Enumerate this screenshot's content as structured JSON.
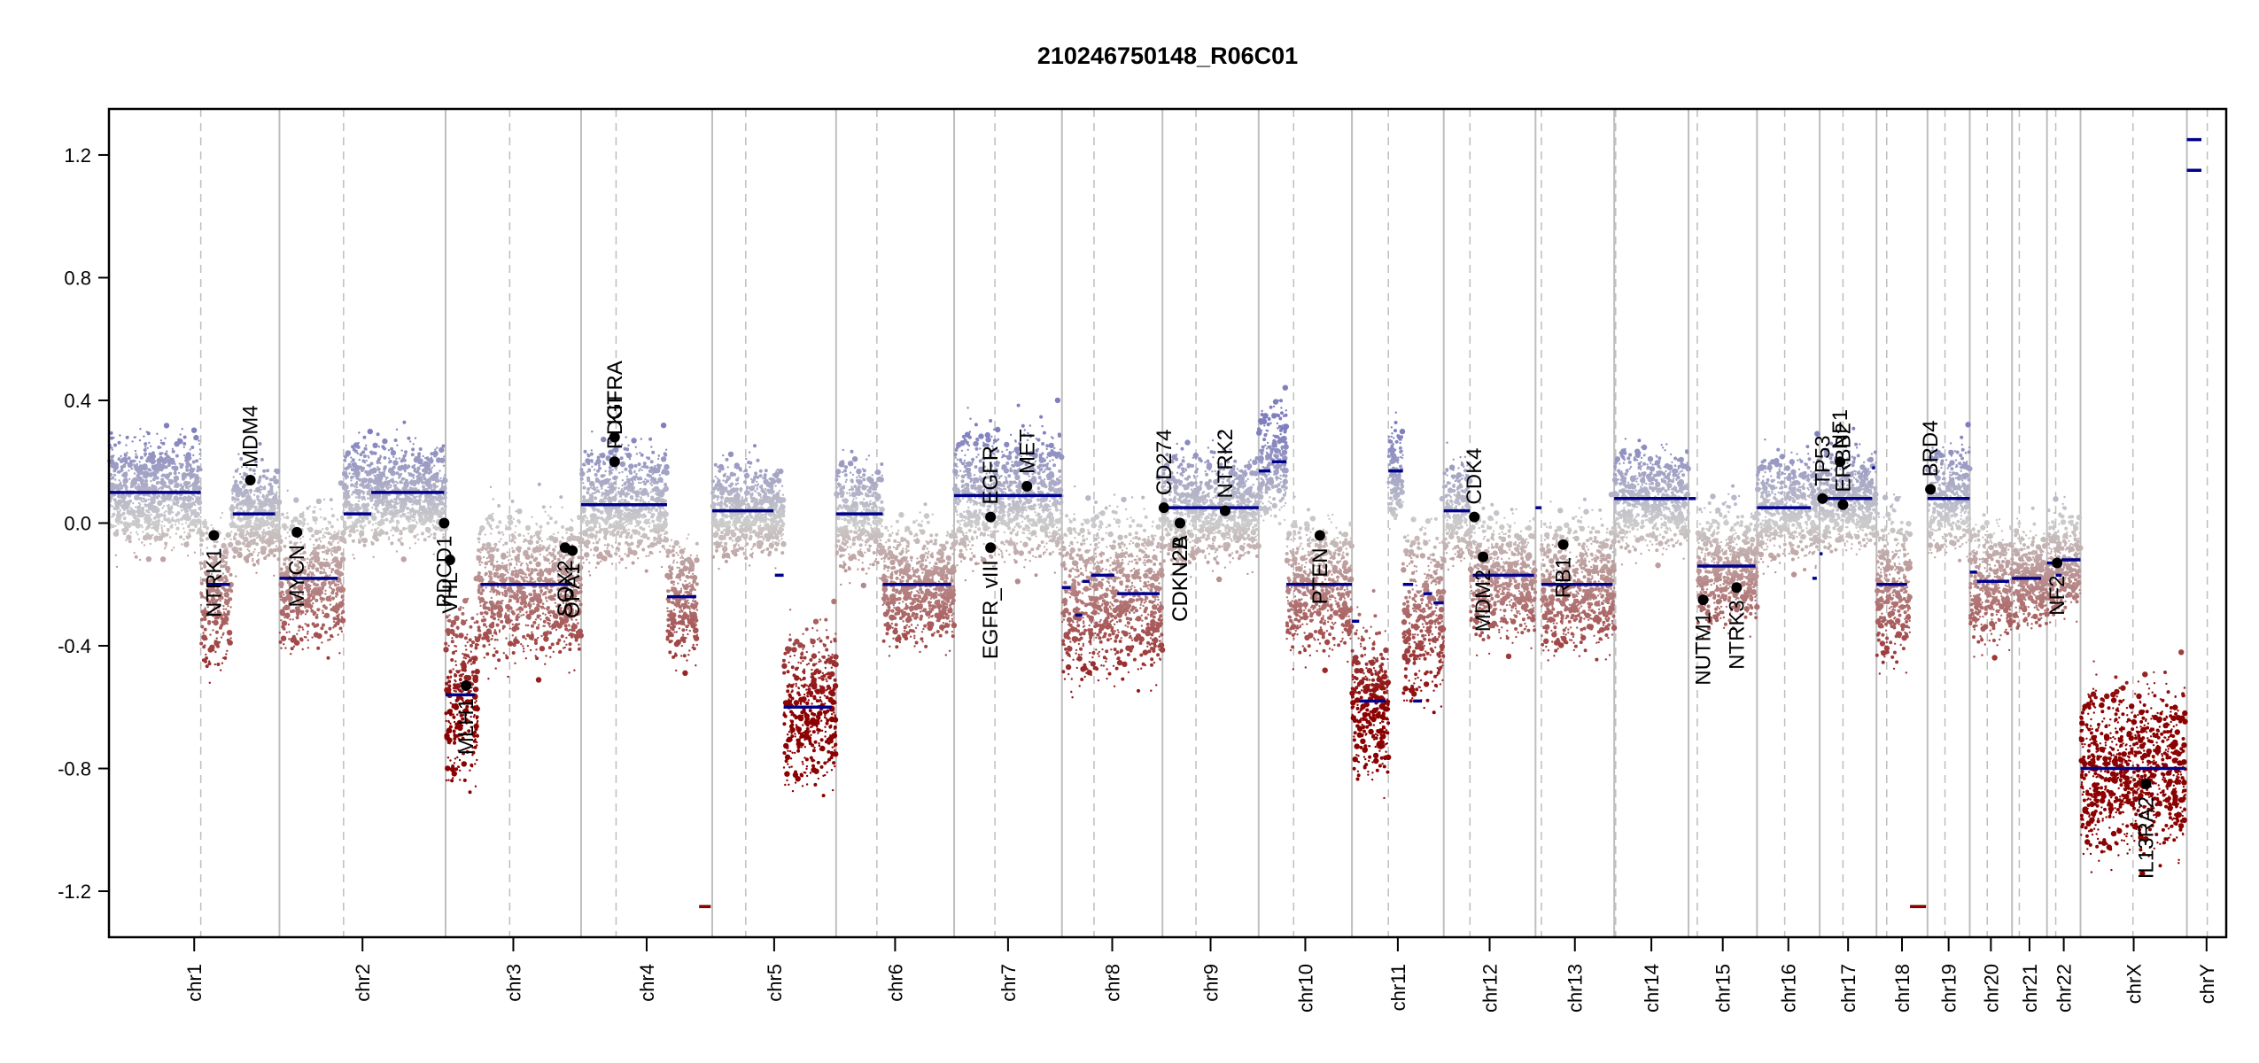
{
  "chart_data": {
    "type": "scatter",
    "title": "210246750148_R06C01",
    "xlabel": "",
    "ylabel": "",
    "ylim": [
      -1.35,
      1.35
    ],
    "yticks": [
      -1.2,
      -0.8,
      -0.4,
      0.0,
      0.4,
      0.8,
      1.2
    ],
    "ytick_labels": [
      "-1.2",
      "-0.8",
      "-0.4",
      "0.0",
      "0.4",
      "0.8",
      "1.2"
    ],
    "grid": false,
    "colors": {
      "gain": "#7f7fbf",
      "neutral": "#cccccc",
      "loss": "#8b0000",
      "segment": "#00008b",
      "gene_marker": "#000000",
      "chrom_boundary": "#bebebe",
      "centromere": "#bebebe"
    },
    "chromosomes": [
      {
        "name": "chr1",
        "start": 0,
        "end": 117,
        "centromere": 63
      },
      {
        "name": "chr2",
        "start": 117,
        "end": 231,
        "centromere": 161
      },
      {
        "name": "chr3",
        "start": 231,
        "end": 324,
        "centromere": 275
      },
      {
        "name": "chr4",
        "start": 324,
        "end": 414,
        "centromere": 348
      },
      {
        "name": "chr5",
        "start": 414,
        "end": 499,
        "centromere": 437
      },
      {
        "name": "chr6",
        "start": 499,
        "end": 580,
        "centromere": 527
      },
      {
        "name": "chr7",
        "start": 580,
        "end": 654,
        "centromere": 608
      },
      {
        "name": "chr8",
        "start": 654,
        "end": 723,
        "centromere": 676
      },
      {
        "name": "chr9",
        "start": 723,
        "end": 789,
        "centromere": 746
      },
      {
        "name": "chr10",
        "start": 789,
        "end": 853,
        "centromere": 813
      },
      {
        "name": "chr11",
        "start": 853,
        "end": 916,
        "centromere": 878
      },
      {
        "name": "chr12",
        "start": 916,
        "end": 979,
        "centromere": 934
      },
      {
        "name": "chr13",
        "start": 979,
        "end": 1033,
        "centromere": 983
      },
      {
        "name": "chr14",
        "start": 1033,
        "end": 1084,
        "centromere": 1034
      },
      {
        "name": "chr15",
        "start": 1084,
        "end": 1131,
        "centromere": 1090
      },
      {
        "name": "chr16",
        "start": 1131,
        "end": 1174,
        "centromere": 1150
      },
      {
        "name": "chr17",
        "start": 1174,
        "end": 1213,
        "centromere": 1190
      },
      {
        "name": "chr18",
        "start": 1213,
        "end": 1248,
        "centromere": 1220
      },
      {
        "name": "chr19",
        "start": 1248,
        "end": 1277,
        "centromere": 1260
      },
      {
        "name": "chr20",
        "start": 1277,
        "end": 1306,
        "centromere": 1289
      },
      {
        "name": "chr21",
        "start": 1306,
        "end": 1330,
        "centromere": 1311
      },
      {
        "name": "chr22",
        "start": 1330,
        "end": 1353,
        "centromere": 1336
      },
      {
        "name": "chrX",
        "start": 1353,
        "end": 1426,
        "centromere": 1389
      },
      {
        "name": "chrY",
        "start": 1426,
        "end": 1453,
        "centromere": 1440
      }
    ],
    "segments": [
      {
        "x0": 0,
        "x1": 63,
        "y": 0.1
      },
      {
        "x0": 68,
        "x1": 83,
        "y": -0.2
      },
      {
        "x0": 85,
        "x1": 114,
        "y": 0.03
      },
      {
        "x0": 117,
        "x1": 157,
        "y": -0.18
      },
      {
        "x0": 161,
        "x1": 180,
        "y": 0.03
      },
      {
        "x0": 180,
        "x1": 230,
        "y": 0.1
      },
      {
        "x0": 231,
        "x1": 251,
        "y": -0.56
      },
      {
        "x0": 255,
        "x1": 318,
        "y": -0.2
      },
      {
        "x0": 324,
        "x1": 383,
        "y": 0.06
      },
      {
        "x0": 383,
        "x1": 403,
        "y": -0.24
      },
      {
        "x0": 405,
        "x1": 413,
        "y": -1.25
      },
      {
        "x0": 414,
        "x1": 456,
        "y": 0.04
      },
      {
        "x0": 457,
        "x1": 463,
        "y": -0.17
      },
      {
        "x0": 463,
        "x1": 496,
        "y": -0.6
      },
      {
        "x0": 499,
        "x1": 531,
        "y": 0.03
      },
      {
        "x0": 531,
        "x1": 578,
        "y": -0.2
      },
      {
        "x0": 580,
        "x1": 654,
        "y": 0.09
      },
      {
        "x0": 654,
        "x1": 660,
        "y": -0.21
      },
      {
        "x0": 663,
        "x1": 668,
        "y": -0.3
      },
      {
        "x0": 668,
        "x1": 673,
        "y": -0.19
      },
      {
        "x0": 674,
        "x1": 690,
        "y": -0.17
      },
      {
        "x0": 692,
        "x1": 721,
        "y": -0.23
      },
      {
        "x0": 723,
        "x1": 789,
        "y": 0.05
      },
      {
        "x0": 789,
        "x1": 797,
        "y": 0.17
      },
      {
        "x0": 798,
        "x1": 808,
        "y": 0.2
      },
      {
        "x0": 808,
        "x1": 853,
        "y": -0.2
      },
      {
        "x0": 853,
        "x1": 858,
        "y": -0.32
      },
      {
        "x0": 858,
        "x1": 876,
        "y": -0.58
      },
      {
        "x0": 878,
        "x1": 888,
        "y": 0.17
      },
      {
        "x0": 888,
        "x1": 895,
        "y": -0.2
      },
      {
        "x0": 895,
        "x1": 901,
        "y": -0.58
      },
      {
        "x0": 902,
        "x1": 908,
        "y": -0.23
      },
      {
        "x0": 909,
        "x1": 916,
        "y": -0.26
      },
      {
        "x0": 916,
        "x1": 934,
        "y": 0.04
      },
      {
        "x0": 936,
        "x1": 978,
        "y": -0.17
      },
      {
        "x0": 979,
        "x1": 983,
        "y": 0.05
      },
      {
        "x0": 983,
        "x1": 1032,
        "y": -0.2
      },
      {
        "x0": 1033,
        "x1": 1083,
        "y": 0.08
      },
      {
        "x0": 1084,
        "x1": 1089,
        "y": 0.08
      },
      {
        "x0": 1090,
        "x1": 1130,
        "y": -0.14
      },
      {
        "x0": 1131,
        "x1": 1168,
        "y": 0.05
      },
      {
        "x0": 1169,
        "x1": 1172,
        "y": -0.18
      },
      {
        "x0": 1174,
        "x1": 1176,
        "y": -0.1
      },
      {
        "x0": 1176,
        "x1": 1210,
        "y": 0.08
      },
      {
        "x0": 1210,
        "x1": 1212,
        "y": 0.18
      },
      {
        "x0": 1213,
        "x1": 1234,
        "y": -0.2
      },
      {
        "x0": 1236,
        "x1": 1247,
        "y": -1.25
      },
      {
        "x0": 1248,
        "x1": 1277,
        "y": 0.08
      },
      {
        "x0": 1277,
        "x1": 1282,
        "y": -0.16
      },
      {
        "x0": 1282,
        "x1": 1304,
        "y": -0.19
      },
      {
        "x0": 1306,
        "x1": 1326,
        "y": -0.18
      },
      {
        "x0": 1330,
        "x1": 1335,
        "y": -0.13
      },
      {
        "x0": 1336,
        "x1": 1340,
        "y": -0.17
      },
      {
        "x0": 1340,
        "x1": 1353,
        "y": -0.12
      },
      {
        "x0": 1353,
        "x1": 1425,
        "y": -0.8
      },
      {
        "x0": 1426,
        "x1": 1436,
        "y": 1.15
      },
      {
        "x0": 1426,
        "x1": 1436,
        "y": 1.25
      }
    ],
    "genes": [
      {
        "name": "NTRK1",
        "x": 72,
        "y": -0.04
      },
      {
        "name": "MDM4",
        "x": 97,
        "y": 0.14
      },
      {
        "name": "MYCN",
        "x": 129,
        "y": -0.03
      },
      {
        "name": "PDCD1",
        "x": 230,
        "y": 0.0
      },
      {
        "name": "VHL",
        "x": 234,
        "y": -0.12
      },
      {
        "name": "MLH1",
        "x": 245,
        "y": -0.53
      },
      {
        "name": "SOX2",
        "x": 313,
        "y": -0.08
      },
      {
        "name": "OPA1",
        "x": 318,
        "y": -0.09
      },
      {
        "name": "KIT",
        "x": 347,
        "y": 0.28
      },
      {
        "name": "PDGFRA",
        "x": 347,
        "y": 0.2
      },
      {
        "name": "EGFR_vIII",
        "x": 605,
        "y": -0.08
      },
      {
        "name": "EGFR",
        "x": 605,
        "y": 0.02
      },
      {
        "name": "MET",
        "x": 630,
        "y": 0.12
      },
      {
        "name": "CD274",
        "x": 724,
        "y": 0.05
      },
      {
        "name": "CDKN2A",
        "x": 735,
        "y": 0.0
      },
      {
        "name": "CDKN2B",
        "x": 735,
        "y": 0.0
      },
      {
        "name": "NTRK2",
        "x": 766,
        "y": 0.04
      },
      {
        "name": "PTEN",
        "x": 831,
        "y": -0.04
      },
      {
        "name": "CDK4",
        "x": 937,
        "y": 0.02
      },
      {
        "name": "MDM2",
        "x": 943,
        "y": -0.11
      },
      {
        "name": "RB1",
        "x": 998,
        "y": -0.07
      },
      {
        "name": "NUTM1",
        "x": 1094,
        "y": -0.25
      },
      {
        "name": "NTRK3",
        "x": 1117,
        "y": -0.21
      },
      {
        "name": "TP53",
        "x": 1176,
        "y": 0.08
      },
      {
        "name": "NF1",
        "x": 1188,
        "y": 0.2
      },
      {
        "name": "ERBB2",
        "x": 1190,
        "y": 0.06
      },
      {
        "name": "BRD4",
        "x": 1250,
        "y": 0.11
      },
      {
        "name": "NF2",
        "x": 1337,
        "y": -0.13
      },
      {
        "name": "IL13RA2",
        "x": 1398,
        "y": -0.85
      }
    ],
    "probe_clouds": [
      {
        "x0": 0,
        "x1": 63,
        "center": 0.1,
        "spread": 0.14
      },
      {
        "x0": 63,
        "x1": 84,
        "center": -0.22,
        "spread": 0.2
      },
      {
        "x0": 84,
        "x1": 117,
        "center": 0.03,
        "spread": 0.14
      },
      {
        "x0": 117,
        "x1": 161,
        "center": -0.18,
        "spread": 0.18
      },
      {
        "x0": 161,
        "x1": 231,
        "center": 0.1,
        "spread": 0.14
      },
      {
        "x0": 231,
        "x1": 253,
        "center": -0.56,
        "spread": 0.22
      },
      {
        "x0": 253,
        "x1": 324,
        "center": -0.2,
        "spread": 0.2
      },
      {
        "x0": 324,
        "x1": 383,
        "center": 0.06,
        "spread": 0.15
      },
      {
        "x0": 383,
        "x1": 404,
        "center": -0.24,
        "spread": 0.16
      },
      {
        "x0": 414,
        "x1": 463,
        "center": 0.04,
        "spread": 0.13
      },
      {
        "x0": 463,
        "x1": 499,
        "center": -0.6,
        "spread": 0.2
      },
      {
        "x0": 499,
        "x1": 531,
        "center": 0.03,
        "spread": 0.15
      },
      {
        "x0": 531,
        "x1": 580,
        "center": -0.2,
        "spread": 0.16
      },
      {
        "x0": 580,
        "x1": 654,
        "center": 0.09,
        "spread": 0.18
      },
      {
        "x0": 654,
        "x1": 723,
        "center": -0.23,
        "spread": 0.22
      },
      {
        "x0": 723,
        "x1": 789,
        "center": 0.05,
        "spread": 0.15
      },
      {
        "x0": 789,
        "x1": 808,
        "center": 0.2,
        "spread": 0.14
      },
      {
        "x0": 808,
        "x1": 853,
        "center": -0.2,
        "spread": 0.18
      },
      {
        "x0": 853,
        "x1": 878,
        "center": -0.58,
        "spread": 0.22
      },
      {
        "x0": 878,
        "x1": 888,
        "center": 0.17,
        "spread": 0.13
      },
      {
        "x0": 888,
        "x1": 916,
        "center": -0.3,
        "spread": 0.22
      },
      {
        "x0": 916,
        "x1": 934,
        "center": 0.04,
        "spread": 0.14
      },
      {
        "x0": 934,
        "x1": 979,
        "center": -0.17,
        "spread": 0.17
      },
      {
        "x0": 983,
        "x1": 1033,
        "center": -0.2,
        "spread": 0.17
      },
      {
        "x0": 1033,
        "x1": 1084,
        "center": 0.08,
        "spread": 0.14
      },
      {
        "x0": 1090,
        "x1": 1131,
        "center": -0.14,
        "spread": 0.16
      },
      {
        "x0": 1131,
        "x1": 1174,
        "center": 0.05,
        "spread": 0.14
      },
      {
        "x0": 1174,
        "x1": 1213,
        "center": 0.08,
        "spread": 0.14
      },
      {
        "x0": 1213,
        "x1": 1236,
        "center": -0.2,
        "spread": 0.2
      },
      {
        "x0": 1248,
        "x1": 1277,
        "center": 0.08,
        "spread": 0.14
      },
      {
        "x0": 1277,
        "x1": 1306,
        "center": -0.19,
        "spread": 0.16
      },
      {
        "x0": 1306,
        "x1": 1330,
        "center": -0.18,
        "spread": 0.14
      },
      {
        "x0": 1330,
        "x1": 1353,
        "center": -0.12,
        "spread": 0.14
      },
      {
        "x0": 1353,
        "x1": 1425,
        "center": -0.8,
        "spread": 0.22
      }
    ],
    "xlim": [
      0,
      1453
    ]
  }
}
